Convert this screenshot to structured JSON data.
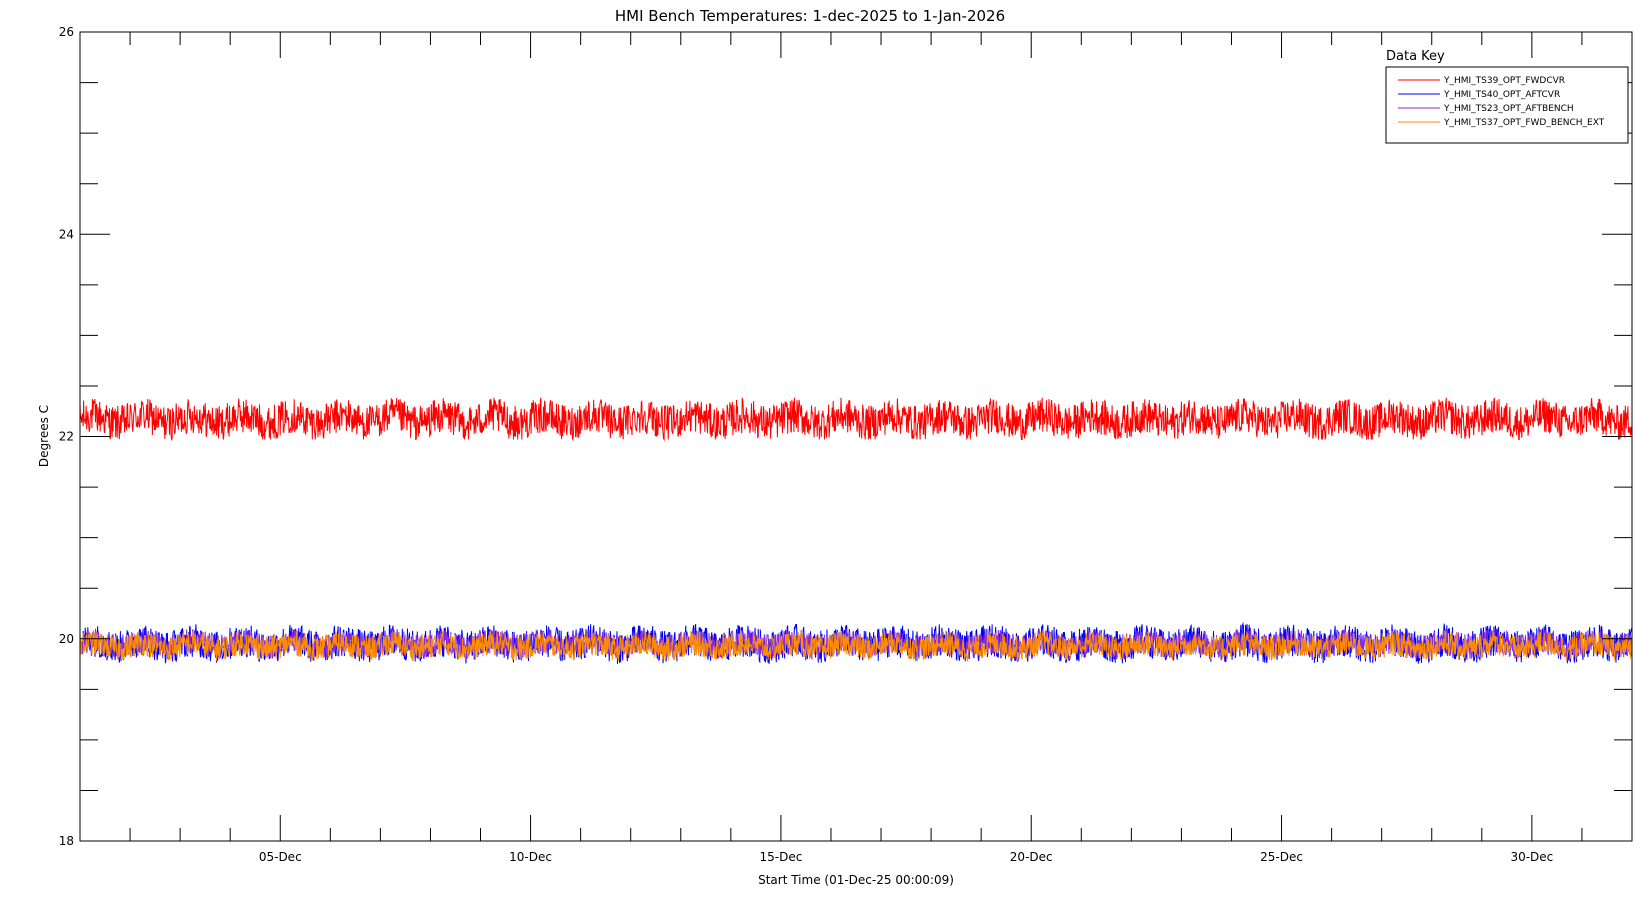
{
  "chart_data": {
    "type": "line",
    "title": "HMI Bench Temperatures: 1-dec-2025 to 1-Jan-2026",
    "xlabel": "Start Time (01-Dec-25 00:00:09)",
    "ylabel": "Degrees C",
    "xlim": [
      "2025-12-01",
      "2026-01-01"
    ],
    "ylim": [
      18,
      26
    ],
    "y_ticks": [
      "18",
      "20",
      "22",
      "24",
      "26"
    ],
    "x_ticks": [
      {
        "label": "05-Dec",
        "date": "2025-12-05"
      },
      {
        "label": "10-Dec",
        "date": "2025-12-10"
      },
      {
        "label": "15-Dec",
        "date": "2025-12-15"
      },
      {
        "label": "20-Dec",
        "date": "2025-12-20"
      },
      {
        "label": "25-Dec",
        "date": "2025-12-25"
      },
      {
        "label": "30-Dec",
        "date": "2025-12-30"
      }
    ],
    "grid": false,
    "legend": {
      "title": "Data Key",
      "placement": "top-right"
    },
    "series": [
      {
        "name": "Y_HMI_TS39_OPT_FWDCVR",
        "color": "#ff0000",
        "mean": 22.17,
        "range": [
          21.97,
          22.4
        ]
      },
      {
        "name": "Y_HMI_TS40_OPT_AFTCVR",
        "color": "#0000ff",
        "mean": 19.95,
        "range": [
          19.75,
          20.15
        ]
      },
      {
        "name": "Y_HMI_TS23_OPT_AFTBENCH",
        "color": "#8a2be2",
        "mean": 19.95,
        "range": [
          19.8,
          20.1
        ]
      },
      {
        "name": "Y_HMI_TS37_OPT_FWD_BENCH_EXT",
        "color": "#ff8c00",
        "mean": 19.93,
        "range": [
          19.78,
          20.08
        ]
      }
    ]
  }
}
